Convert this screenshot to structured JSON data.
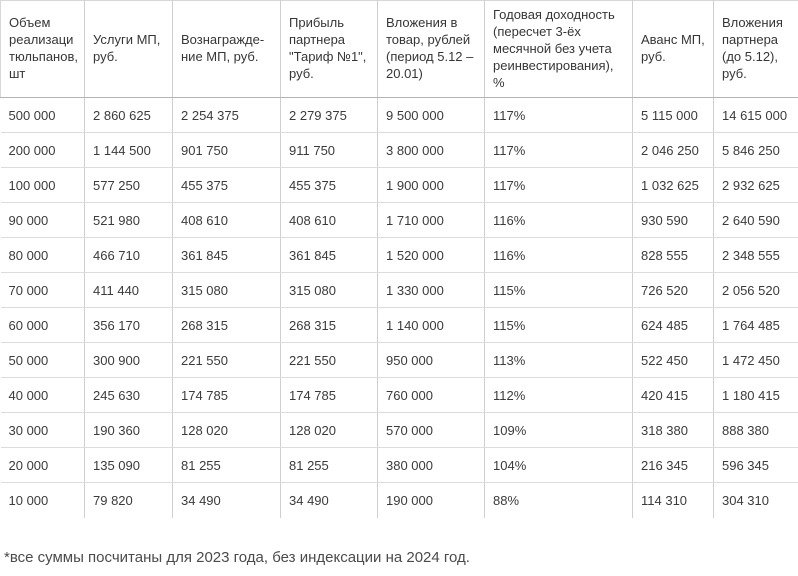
{
  "page": {
    "background_color": "#ffffff",
    "text_color": "#3b3b3b",
    "border_color_vertical": "#cfcfcf",
    "border_color_row": "#dcdcdc",
    "border_color_header_bottom": "#b3b3b3"
  },
  "table": {
    "columns": [
      {
        "id": "volume",
        "label": "Объем реализаци тюльпанов, шт"
      },
      {
        "id": "mp-services",
        "label": "Услуги МП, руб."
      },
      {
        "id": "mp-remuneration",
        "label": "Вознагражде­ние МП, руб."
      },
      {
        "id": "partner-profit",
        "label": "Прибыль партнера \"Тариф №1\", руб."
      },
      {
        "id": "goods-investment",
        "label": "Вложения в товар, рублей (период 5.12 – 20.01)"
      },
      {
        "id": "annual-yield",
        "label": "Годовая доходность (пересчет 3-ёх месячной без учета реинвестирования), %"
      },
      {
        "id": "mp-advance",
        "label": "Аванс МП, руб."
      },
      {
        "id": "partner-investment",
        "label": "Вложения партнера (до 5.12), руб."
      }
    ],
    "rows": [
      [
        "500 000",
        "2 860 625",
        "2 254 375",
        "2 279 375",
        "9 500 000",
        "117%",
        "5 115 000",
        "14 615 000"
      ],
      [
        "200 000",
        "1 144 500",
        "901 750",
        "911 750",
        "3 800 000",
        "117%",
        "2 046 250",
        "5 846 250"
      ],
      [
        "100 000",
        "577 250",
        "455 375",
        "455 375",
        "1 900 000",
        "117%",
        "1 032 625",
        "2 932 625"
      ],
      [
        "90 000",
        "521 980",
        "408 610",
        "408 610",
        "1 710 000",
        "116%",
        "930 590",
        "2 640 590"
      ],
      [
        "80 000",
        "466 710",
        "361 845",
        "361 845",
        "1 520 000",
        "116%",
        "828 555",
        "2 348 555"
      ],
      [
        "70 000",
        "411 440",
        "315 080",
        "315 080",
        "1 330 000",
        "115%",
        "726 520",
        "2 056 520"
      ],
      [
        "60 000",
        "356 170",
        "268 315",
        "268 315",
        "1 140 000",
        "115%",
        "624 485",
        "1 764 485"
      ],
      [
        "50 000",
        "300 900",
        "221 550",
        "221 550",
        "950 000",
        "113%",
        "522 450",
        "1 472 450"
      ],
      [
        "40 000",
        "245 630",
        "174 785",
        "174 785",
        "760 000",
        "112%",
        "420 415",
        "1 180 415"
      ],
      [
        "30 000",
        "190 360",
        "128 020",
        "128 020",
        "570 000",
        "109%",
        "318 380",
        "888 380"
      ],
      [
        "20 000",
        "135 090",
        "81 255",
        "81 255",
        "380 000",
        "104%",
        "216 345",
        "596 345"
      ],
      [
        "10 000",
        "79 820",
        "34 490",
        "34 490",
        "190 000",
        "88%",
        "114 310",
        "304 310"
      ]
    ]
  },
  "footnote": "*все суммы посчитаны для 2023 года, без индексации на 2024 год."
}
